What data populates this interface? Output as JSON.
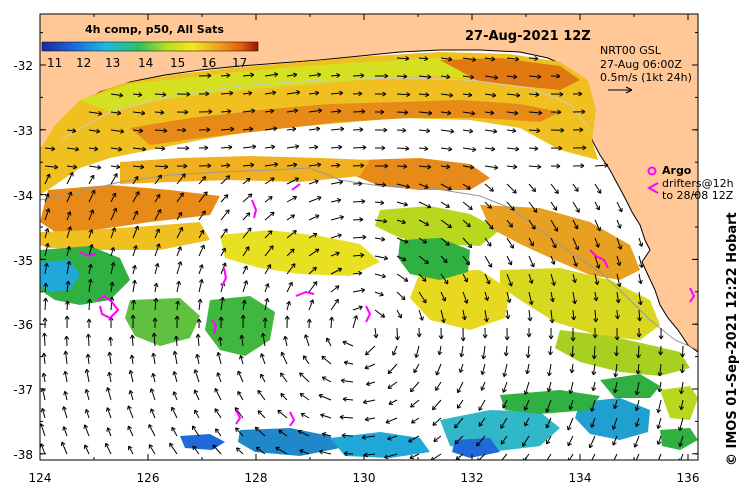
{
  "title": "27-Aug-2021 12Z",
  "colorbar": {
    "title": "4h comp, p50, All Sats",
    "labels": [
      "11",
      "12",
      "13",
      "14",
      "15",
      "16",
      "17"
    ]
  },
  "legend": {
    "line1": "NRT00 GSL",
    "line2": "27-Aug 06:00Z",
    "line3": "0.5m/s (1kt 24h)"
  },
  "argo": {
    "label": "Argo",
    "drifters_line1": "drifters@12h",
    "drifters_line2": "to 28/08 12Z",
    "color": "#ff00ff"
  },
  "side_label": "© IMOS 01-Sep-2021 12:22 Hobart",
  "axes": {
    "x_ticks": [
      "124",
      "126",
      "128",
      "130",
      "132",
      "134",
      "136"
    ],
    "y_ticks": [
      "-32",
      "-33",
      "-34",
      "-35",
      "-36",
      "-37",
      "-38"
    ]
  },
  "colors": {
    "land": "#ffc896",
    "ocean_no_data": "#ffffff",
    "warm": "#e07a10",
    "mid": "#d4e020",
    "cool": "#30b040",
    "cold": "#20a8d8",
    "argo": "#ff00ff"
  }
}
